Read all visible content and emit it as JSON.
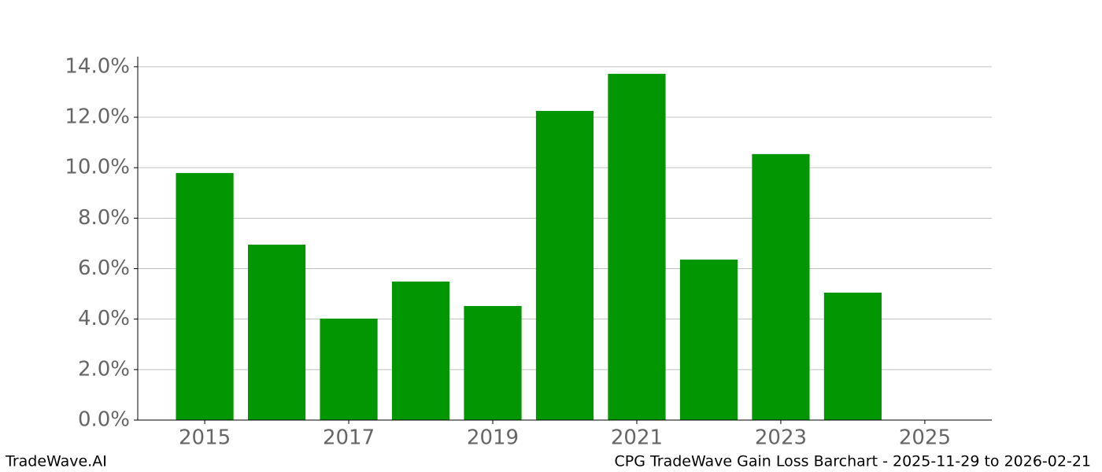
{
  "chart_data": {
    "type": "bar",
    "x": [
      2015,
      2016,
      2017,
      2018,
      2019,
      2020,
      2021,
      2022,
      2023,
      2024
    ],
    "values": [
      9.79,
      6.95,
      4.02,
      5.49,
      4.52,
      12.25,
      13.72,
      6.36,
      10.54,
      5.05
    ],
    "color": "#029702",
    "xlim": [
      2014.07,
      2025.93
    ],
    "xticks": [
      2015,
      2017,
      2019,
      2021,
      2023,
      2025
    ],
    "ylim": [
      0,
      14.4
    ],
    "yticks": [
      {
        "value": 0,
        "label": "0.0%"
      },
      {
        "value": 2,
        "label": "2.0%"
      },
      {
        "value": 4,
        "label": "4.0%"
      },
      {
        "value": 6,
        "label": "6.0%"
      },
      {
        "value": 8,
        "label": "8.0%"
      },
      {
        "value": 10,
        "label": "10.0%"
      },
      {
        "value": 12,
        "label": "12.0%"
      },
      {
        "value": 14,
        "label": "14.0%"
      }
    ],
    "grid": true
  },
  "footer": {
    "left": "TradeWave.AI",
    "right": "CPG TradeWave Gain Loss Barchart - 2025-11-29 to 2026-02-21"
  }
}
